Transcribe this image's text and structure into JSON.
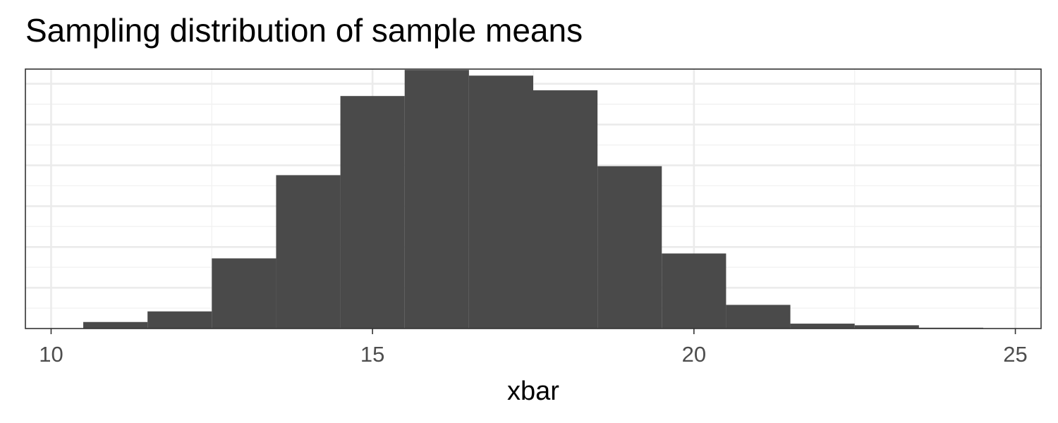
{
  "chart_data": {
    "type": "bar",
    "title": "Sampling distribution of sample means",
    "xlabel": "xbar",
    "ylabel": "",
    "xlim": [
      9.6,
      25.4
    ],
    "ylim": [
      0,
      1590
    ],
    "x_ticks": [
      10,
      15,
      20,
      25
    ],
    "y_ticks_shown": false,
    "y_gridlines": [
      250,
      500,
      750,
      1000,
      1250,
      1500
    ],
    "grid": true,
    "bin_width": 1,
    "bins": [
      {
        "x_start": 10.5,
        "x_end": 11.5,
        "count": 40
      },
      {
        "x_start": 11.5,
        "x_end": 12.5,
        "count": 105
      },
      {
        "x_start": 12.5,
        "x_end": 13.5,
        "count": 430
      },
      {
        "x_start": 13.5,
        "x_end": 14.5,
        "count": 940
      },
      {
        "x_start": 14.5,
        "x_end": 15.5,
        "count": 1425
      },
      {
        "x_start": 15.5,
        "x_end": 16.5,
        "count": 1585
      },
      {
        "x_start": 16.5,
        "x_end": 17.5,
        "count": 1550
      },
      {
        "x_start": 17.5,
        "x_end": 18.5,
        "count": 1460
      },
      {
        "x_start": 18.5,
        "x_end": 19.5,
        "count": 995
      },
      {
        "x_start": 19.5,
        "x_end": 20.5,
        "count": 460
      },
      {
        "x_start": 20.5,
        "x_end": 21.5,
        "count": 145
      },
      {
        "x_start": 21.5,
        "x_end": 22.5,
        "count": 30
      },
      {
        "x_start": 22.5,
        "x_end": 23.5,
        "count": 20
      },
      {
        "x_start": 23.5,
        "x_end": 24.5,
        "count": 5
      }
    ],
    "colors": {
      "bar": "#4a4a4a",
      "panel_border": "#333333",
      "grid_major": "#ebebeb",
      "grid_minor": "#f2f2f2",
      "axis_text": "#4d4d4d"
    }
  }
}
